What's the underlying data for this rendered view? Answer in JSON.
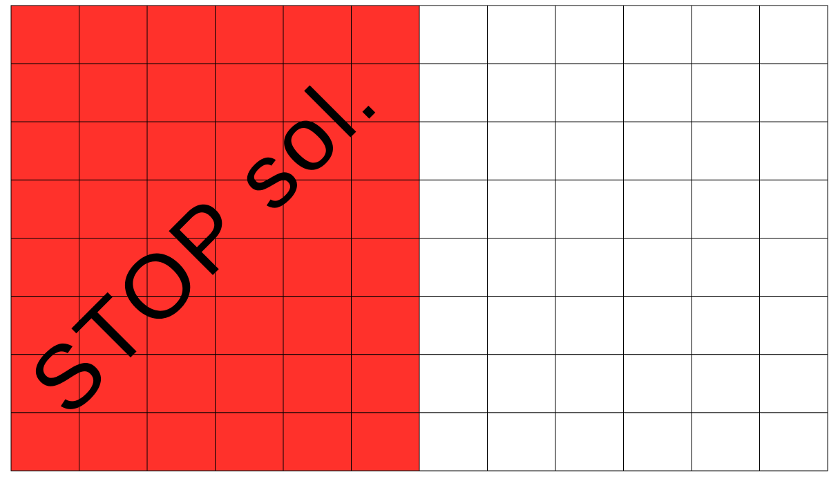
{
  "grid": {
    "columns": 12,
    "rows": 8,
    "filled_columns": 6,
    "fill_color": "#FF312B",
    "empty_color": "#FFFFFF",
    "line_color": "#000000"
  },
  "label": {
    "text": "STOP sol.",
    "color": "#000000"
  }
}
